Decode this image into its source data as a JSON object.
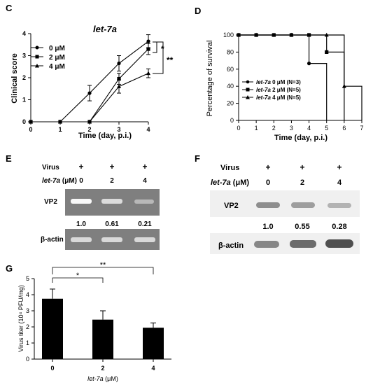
{
  "chart_data": [
    {
      "panel": "C",
      "type": "line",
      "title": "let-7a",
      "xlabel": "Time (day,  p.i.)",
      "ylabel": "Clinical score",
      "x": [
        0,
        1,
        2,
        3,
        4
      ],
      "xlim": [
        0,
        4
      ],
      "ylim": [
        0,
        4
      ],
      "xticks": [
        "0",
        "1",
        "2",
        "3",
        "4"
      ],
      "yticks": [
        "0",
        "1",
        "2",
        "3",
        "4"
      ],
      "series": [
        {
          "name": "0 μM",
          "marker": "circle",
          "values": [
            0,
            0,
            1.3,
            2.65,
            3.65
          ],
          "err": [
            0,
            0,
            0.35,
            0.35,
            0.3
          ]
        },
        {
          "name": "2 μM",
          "marker": "square",
          "values": [
            0,
            0,
            0,
            1.95,
            3.3
          ],
          "err": [
            0,
            0,
            0,
            0.25,
            0.25
          ]
        },
        {
          "name": "4 μM",
          "marker": "triangle",
          "values": [
            0,
            0,
            0,
            1.6,
            2.2
          ],
          "err": [
            0,
            0,
            0,
            0.3,
            0.2
          ]
        }
      ],
      "annotations": [
        "*",
        "**"
      ],
      "legend_position": "top-left"
    },
    {
      "panel": "D",
      "type": "line",
      "subtype": "survival-step",
      "xlabel": "Time (day, p.i.)",
      "ylabel": "Percentage of survival",
      "x": [
        0,
        1,
        2,
        3,
        4,
        5,
        6,
        7
      ],
      "xlim": [
        0,
        7
      ],
      "ylim": [
        0,
        100
      ],
      "xticks": [
        "0",
        "1",
        "2",
        "3",
        "4",
        "5",
        "6",
        "7"
      ],
      "yticks": [
        "0",
        "20",
        "40",
        "60",
        "80",
        "100"
      ],
      "series": [
        {
          "name": "let-7a 0 μM (N=3)",
          "marker": "circle",
          "steps": [
            [
              0,
              100
            ],
            [
              4,
              66.7
            ],
            [
              5,
              0
            ]
          ]
        },
        {
          "name": "let-7a 2 μM (N=5)",
          "marker": "square",
          "steps": [
            [
              0,
              100
            ],
            [
              5,
              80
            ],
            [
              6,
              0
            ]
          ]
        },
        {
          "name": "let-7a 4 μM (N=5)",
          "marker": "triangle",
          "steps": [
            [
              0,
              100
            ],
            [
              6,
              40
            ],
            [
              7,
              0
            ]
          ]
        }
      ],
      "legend_position": "bottom-left"
    },
    {
      "panel": "G",
      "type": "bar",
      "categories": [
        "0",
        "2",
        "4"
      ],
      "values": [
        3.75,
        2.45,
        1.95
      ],
      "err": [
        0.6,
        0.55,
        0.3
      ],
      "xlabel": "let-7a (μM)",
      "ylabel": "Virus titer (10⁴ PFU/mg)",
      "ylim": [
        0,
        5
      ],
      "yticks": [
        "0",
        "1",
        "2",
        "3",
        "4",
        "5"
      ],
      "annotations": [
        "*",
        "**"
      ]
    }
  ],
  "panels": {
    "C": {
      "letter": "C",
      "title": "let-7a",
      "legend": [
        "0 μM",
        "2 μM",
        "4 μM"
      ],
      "sig1": "*",
      "sig2": "**"
    },
    "D": {
      "letter": "D",
      "legend_prefix": "let-7a",
      "legend_suffix": [
        " 0 μM (N=3)",
        " 2 μM (N=5)",
        " 4 μM (N=5)"
      ]
    },
    "E": {
      "letter": "E",
      "virus_label": "Virus",
      "treatment_label": "let-7a",
      "treatment_unit": " (μM)",
      "virus_marks": [
        "+",
        "+",
        "+"
      ],
      "doses": [
        "0",
        "2",
        "4"
      ],
      "band1_label": "VP2",
      "ratios": [
        "1.0",
        "0.61",
        "0.21"
      ],
      "band2_label": "β-actin"
    },
    "F": {
      "letter": "F",
      "virus_label": "Virus",
      "treatment_label": "let-7a",
      "treatment_unit": " (μM)",
      "virus_marks": [
        "+",
        "+",
        "+"
      ],
      "doses": [
        "0",
        "2",
        "4"
      ],
      "band1_label": "VP2",
      "ratios": [
        "1.0",
        "0.55",
        "0.28"
      ],
      "band2_label": "β-actin"
    },
    "G": {
      "letter": "G",
      "xlabel_italic": "let-7a",
      "xlabel_unit": " (μM)",
      "sig1": "*",
      "sig2": "**"
    }
  },
  "colors": {
    "line": "#000000",
    "bar": "#000000",
    "gel": "#7f7f7f",
    "blot": "#f0f0f0"
  }
}
